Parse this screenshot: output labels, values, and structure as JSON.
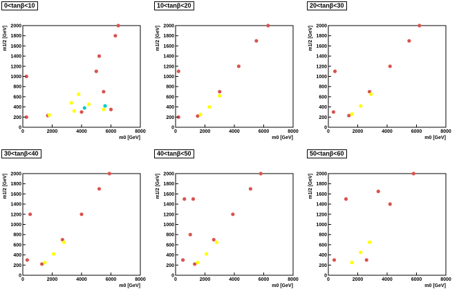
{
  "chart_data": [
    {
      "type": "scatter",
      "title": "0<tanβ<10",
      "xlabel": "m0 [GeV]",
      "ylabel": "m1/2 [GeV]",
      "xlim": [
        0,
        8000
      ],
      "ylim": [
        0,
        2000
      ],
      "xticks": [
        "0",
        "2000",
        "4000",
        "6000",
        "8000"
      ],
      "yticks": [
        "0",
        "200",
        "400",
        "600",
        "800",
        "1000",
        "1200",
        "1400",
        "1600",
        "1800",
        "2000"
      ],
      "series": [
        {
          "color": "#d9534f",
          "values": [
            [
              1700,
              230
            ],
            [
              4000,
              300
            ],
            [
              6000,
              350
            ],
            [
              5500,
              700
            ],
            [
              5000,
              1100
            ],
            [
              5200,
              1400
            ],
            [
              6300,
              1800
            ],
            [
              6500,
              2000
            ],
            [
              250,
              200
            ],
            [
              250,
              1000
            ]
          ]
        },
        {
          "color": "#ffff00",
          "values": [
            [
              1800,
              240
            ],
            [
              3500,
              320
            ],
            [
              4500,
              450
            ],
            [
              3800,
              650
            ],
            [
              3300,
              480
            ],
            [
              5500,
              350
            ]
          ]
        },
        {
          "color": "#00cccc",
          "values": [
            [
              4200,
              380
            ],
            [
              5600,
              420
            ]
          ]
        }
      ]
    },
    {
      "type": "scatter",
      "title": "10<tanβ<20",
      "xlabel": "m0 [GeV]",
      "ylabel": "m1/2 [GeV]",
      "xlim": [
        0,
        8000
      ],
      "ylim": [
        0,
        2000
      ],
      "xticks": [
        "0",
        "2000",
        "4000",
        "6000",
        "8000"
      ],
      "yticks": [
        "0",
        "200",
        "400",
        "600",
        "800",
        "1000",
        "1200",
        "1400",
        "1600",
        "1800",
        "2000"
      ],
      "series": [
        {
          "color": "#d9534f",
          "values": [
            [
              1500,
              220
            ],
            [
              3000,
              700
            ],
            [
              4300,
              1200
            ],
            [
              5500,
              1700
            ],
            [
              6300,
              2000
            ],
            [
              200,
              200
            ],
            [
              200,
              1100
            ]
          ]
        },
        {
          "color": "#ffff00",
          "values": [
            [
              1700,
              250
            ],
            [
              2300,
              400
            ],
            [
              3000,
              620
            ]
          ]
        }
      ]
    },
    {
      "type": "scatter",
      "title": "20<tanβ<30",
      "xlabel": "m0 [GeV]",
      "ylabel": "m1/2 [GeV]",
      "xlim": [
        0,
        8000
      ],
      "ylim": [
        0,
        2000
      ],
      "xticks": [
        "0",
        "2000",
        "4000",
        "6000",
        "8000"
      ],
      "yticks": [
        "0",
        "200",
        "400",
        "600",
        "800",
        "1000",
        "1200",
        "1400",
        "1600",
        "1800",
        "2000"
      ],
      "series": [
        {
          "color": "#d9534f",
          "values": [
            [
              1400,
              230
            ],
            [
              2800,
              700
            ],
            [
              4200,
              1200
            ],
            [
              5500,
              1700
            ],
            [
              6200,
              2000
            ],
            [
              350,
              300
            ],
            [
              450,
              1100
            ]
          ]
        },
        {
          "color": "#ffff00",
          "values": [
            [
              1600,
              260
            ],
            [
              2200,
              420
            ],
            [
              2900,
              650
            ]
          ]
        }
      ]
    },
    {
      "type": "scatter",
      "title": "30<tanβ<40",
      "xlabel": "m0 [GeV]",
      "ylabel": "m1/2 [GeV]",
      "xlim": [
        0,
        8000
      ],
      "ylim": [
        0,
        2000
      ],
      "xticks": [
        "0",
        "2000",
        "4000",
        "6000",
        "8000"
      ],
      "yticks": [
        "0",
        "200",
        "400",
        "600",
        "800",
        "1000",
        "1200",
        "1400",
        "1600",
        "1800",
        "2000"
      ],
      "series": [
        {
          "color": "#d9534f",
          "values": [
            [
              1300,
              220
            ],
            [
              2700,
              700
            ],
            [
              4000,
              1200
            ],
            [
              5200,
              1700
            ],
            [
              5900,
              2000
            ],
            [
              300,
              300
            ],
            [
              500,
              1200
            ]
          ]
        },
        {
          "color": "#ffff00",
          "values": [
            [
              1500,
              250
            ],
            [
              2100,
              420
            ],
            [
              2800,
              650
            ]
          ]
        }
      ]
    },
    {
      "type": "scatter",
      "title": "40<tanβ<50",
      "xlabel": "m0 [GeV]",
      "ylabel": "m1/2 [GeV]",
      "xlim": [
        0,
        8000
      ],
      "ylim": [
        0,
        2000
      ],
      "xticks": [
        "0",
        "2000",
        "4000",
        "6000",
        "8000"
      ],
      "yticks": [
        "0",
        "200",
        "400",
        "600",
        "800",
        "1000",
        "1200",
        "1400",
        "1600",
        "1800",
        "2000"
      ],
      "series": [
        {
          "color": "#d9534f",
          "values": [
            [
              1300,
              220
            ],
            [
              2600,
              700
            ],
            [
              3900,
              1200
            ],
            [
              5100,
              1700
            ],
            [
              5800,
              2000
            ],
            [
              500,
              300
            ],
            [
              600,
              1500
            ],
            [
              1200,
              1500
            ],
            [
              1000,
              800
            ]
          ]
        },
        {
          "color": "#ffff00",
          "values": [
            [
              1500,
              250
            ],
            [
              2100,
              420
            ],
            [
              2800,
              650
            ]
          ]
        }
      ]
    },
    {
      "type": "scatter",
      "title": "50<tanβ<60",
      "xlabel": "m0 [GeV]",
      "ylabel": "m1/2 [GeV]",
      "xlim": [
        0,
        8000
      ],
      "ylim": [
        0,
        2000
      ],
      "xticks": [
        "0",
        "2000",
        "4000",
        "6000",
        "8000"
      ],
      "yticks": [
        "0",
        "200",
        "400",
        "600",
        "800",
        "1000",
        "1200",
        "1400",
        "1600",
        "1800",
        "2000"
      ],
      "series": [
        {
          "color": "#d9534f",
          "values": [
            [
              400,
              300
            ],
            [
              1200,
              1500
            ],
            [
              3400,
              1650
            ],
            [
              4200,
              1400
            ],
            [
              5800,
              2000
            ],
            [
              2600,
              300
            ]
          ]
        },
        {
          "color": "#ffff00",
          "values": [
            [
              1600,
              250
            ],
            [
              2200,
              450
            ],
            [
              2800,
              650
            ]
          ]
        }
      ]
    }
  ]
}
